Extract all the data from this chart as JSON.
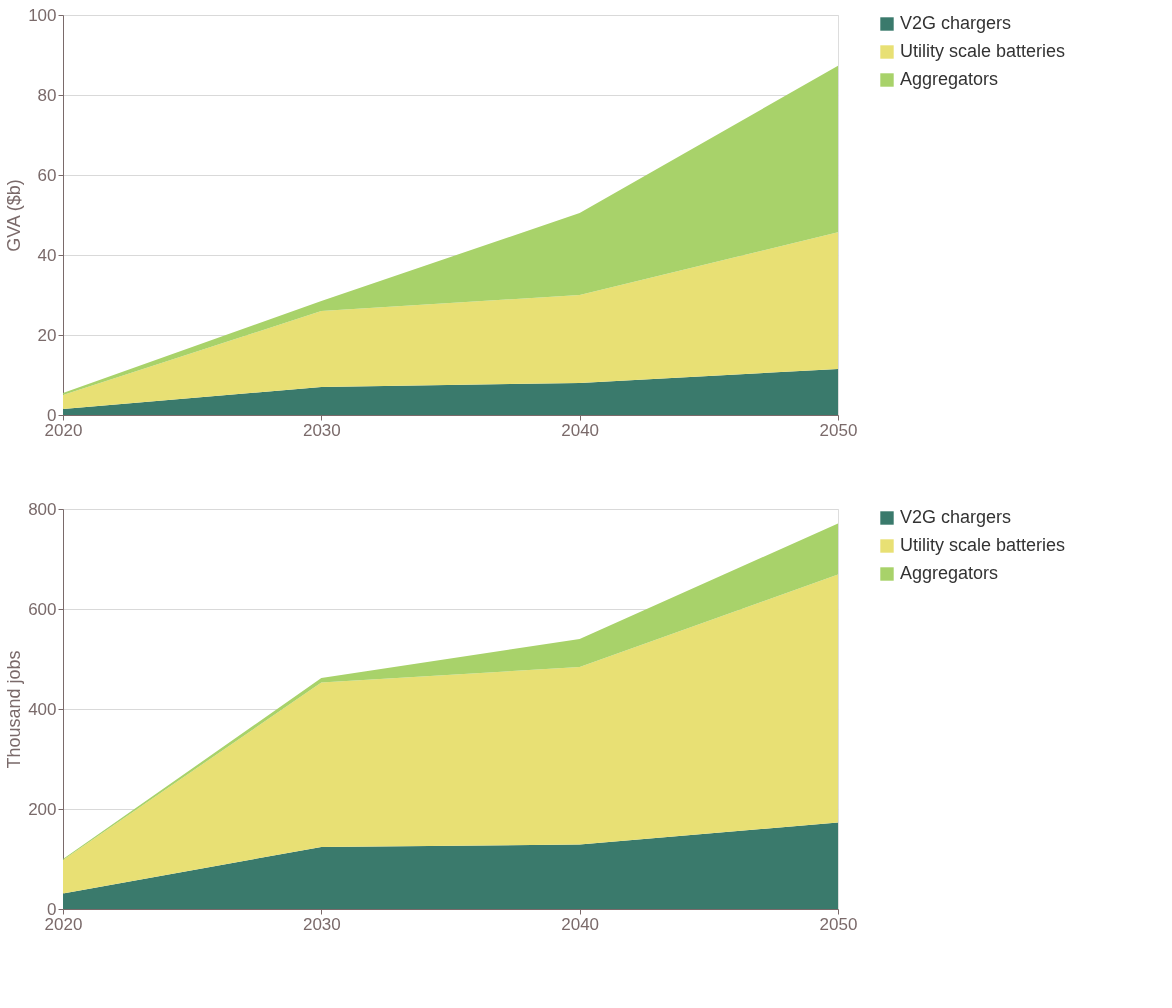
{
  "chart_data": [
    {
      "type": "area",
      "stacked": true,
      "ylabel": "GVA ($b)",
      "x": [
        2020,
        2030,
        2040,
        2050
      ],
      "xlim": [
        2020,
        2050
      ],
      "xticks": [
        2020,
        2030,
        2040,
        2050
      ],
      "ylim": [
        0,
        100
      ],
      "yticks": [
        0,
        20,
        40,
        60,
        80,
        100
      ],
      "grid": "y",
      "legend": "right",
      "series": [
        {
          "name": "V2G chargers",
          "color": "#3a7a6c",
          "values": [
            1.5,
            7,
            8,
            11.5
          ]
        },
        {
          "name": "Utility scale batteries",
          "color": "#e8e074",
          "values": [
            3.5,
            19,
            22,
            34.2
          ]
        },
        {
          "name": "Aggregators",
          "color": "#a8d26a",
          "values": [
            0.5,
            2.5,
            20.5,
            41.6
          ]
        }
      ]
    },
    {
      "type": "area",
      "stacked": true,
      "ylabel": "Thousand jobs",
      "x": [
        2020,
        2030,
        2040,
        2050
      ],
      "xlim": [
        2020,
        2050
      ],
      "xticks": [
        2020,
        2030,
        2040,
        2050
      ],
      "ylim": [
        0,
        800
      ],
      "yticks": [
        0,
        200,
        400,
        600,
        800
      ],
      "grid": "y",
      "legend": "right",
      "series": [
        {
          "name": "V2G chargers",
          "color": "#3a7a6c",
          "values": [
            31,
            124,
            129,
            173
          ]
        },
        {
          "name": "Utility scale batteries",
          "color": "#e8e074",
          "values": [
            67,
            329,
            355,
            496
          ]
        },
        {
          "name": "Aggregators",
          "color": "#a8d26a",
          "values": [
            2,
            9,
            56,
            102
          ]
        }
      ]
    }
  ]
}
